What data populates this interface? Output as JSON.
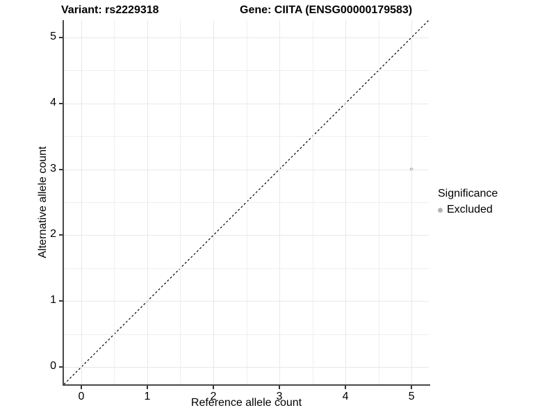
{
  "header": {
    "variant_title": "Variant: rs2229318",
    "gene_title": "Gene: CIITA (ENSG00000179583)"
  },
  "chart_data": {
    "type": "scatter",
    "xlabel": "Reference allele count",
    "ylabel": "Alternative allele count",
    "xlim": [
      -0.2625,
      5.2625
    ],
    "ylim": [
      -0.2625,
      5.2625
    ],
    "xticks": [
      0,
      1,
      2,
      3,
      4,
      5
    ],
    "yticks": [
      0,
      1,
      2,
      3,
      4,
      5
    ],
    "x_minor": [
      0.5,
      1.5,
      2.5,
      3.5,
      4.5
    ],
    "y_minor": [
      0.5,
      1.5,
      2.5,
      3.5,
      4.5
    ],
    "grid": true,
    "identity_line": {
      "style": "dashed",
      "from": [
        -0.2625,
        -0.2625
      ],
      "to": [
        5.2625,
        5.2625
      ],
      "color": "#000000",
      "dash": "3,3"
    },
    "series": [
      {
        "name": "Excluded",
        "color": "#b4b4b4",
        "point_diameter": 5,
        "points": [
          [
            5,
            3
          ]
        ]
      }
    ],
    "legend": {
      "title": "Significance",
      "position": "right",
      "items": [
        {
          "label": "Excluded",
          "color": "#b4b4b4"
        }
      ]
    }
  },
  "colors": {
    "axis_line": "#474747",
    "tick_mark": "#333333",
    "grid_major": "#e8e8e8",
    "grid_minor": "#efefef",
    "background": "#ffffff",
    "text": "#000000"
  }
}
